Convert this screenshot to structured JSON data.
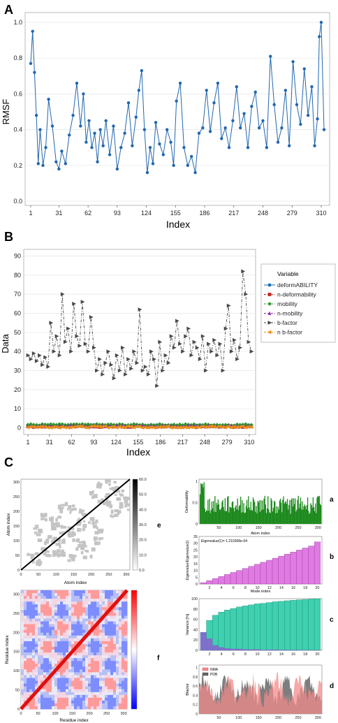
{
  "panel_labels": {
    "A": "A",
    "B": "B",
    "C": "C"
  },
  "sub_labels": {
    "a": "a",
    "b": "b",
    "c": "c",
    "d": "d",
    "e": "e",
    "f": "f"
  },
  "colors": {
    "rmsf_line": "#2166b0",
    "bfactor": "#4a4a4a",
    "deformability": "#1f6fb4",
    "n_deformability": "#c0281f",
    "mobility": "#2e9a2e",
    "n_mobility": "#8b2aa8",
    "n_bfactor": "#e8901a",
    "deform_bars": "#1e8a1e",
    "eigen_bars": "#e07be3",
    "variance_bars": "#3fd0b0",
    "variance_indiv": "#8a5fd0",
    "nma_fill": "#f28b8b",
    "pdb_fill": "#666666"
  },
  "chart_data": [
    {
      "id": "A",
      "type": "line",
      "xlabel": "Index",
      "ylabel": "RMSF",
      "xlim": [
        1,
        313
      ],
      "ylim": [
        0.0,
        1.0
      ],
      "xticks": [
        1,
        31,
        62,
        93,
        124,
        155,
        186,
        217,
        248,
        279,
        310
      ],
      "yticks": [
        0.0,
        0.2,
        0.4,
        0.6,
        0.8,
        1.0
      ],
      "ytick_labels": [
        "0.0",
        "0.2",
        "0.4",
        "0.6",
        "0.8",
        "1.0"
      ],
      "x": [
        1,
        3,
        5,
        7,
        9,
        11,
        14,
        17,
        20,
        24,
        28,
        31,
        34,
        38,
        42,
        46,
        50,
        54,
        57,
        60,
        63,
        66,
        69,
        72,
        75,
        78,
        81,
        85,
        89,
        93,
        97,
        101,
        105,
        109,
        113,
        116,
        119,
        122,
        125,
        128,
        131,
        134,
        138,
        142,
        146,
        150,
        153,
        156,
        160,
        164,
        168,
        172,
        176,
        180,
        184,
        188,
        192,
        196,
        200,
        204,
        208,
        212,
        216,
        220,
        224,
        228,
        232,
        236,
        240,
        244,
        248,
        252,
        256,
        260,
        264,
        268,
        272,
        276,
        280,
        284,
        288,
        292,
        296,
        300,
        303,
        306,
        308,
        310,
        313
      ],
      "values": [
        0.77,
        0.95,
        0.72,
        0.48,
        0.21,
        0.4,
        0.2,
        0.3,
        0.57,
        0.42,
        0.22,
        0.18,
        0.28,
        0.21,
        0.37,
        0.48,
        0.66,
        0.42,
        0.6,
        0.33,
        0.45,
        0.3,
        0.38,
        0.22,
        0.4,
        0.31,
        0.45,
        0.26,
        0.42,
        0.18,
        0.3,
        0.38,
        0.55,
        0.31,
        0.47,
        0.62,
        0.73,
        0.4,
        0.16,
        0.3,
        0.21,
        0.44,
        0.32,
        0.26,
        0.4,
        0.33,
        0.2,
        0.56,
        0.66,
        0.3,
        0.2,
        0.25,
        0.16,
        0.38,
        0.41,
        0.62,
        0.39,
        0.55,
        0.66,
        0.35,
        0.41,
        0.3,
        0.45,
        0.64,
        0.41,
        0.49,
        0.3,
        0.53,
        0.61,
        0.41,
        0.45,
        0.3,
        0.81,
        0.54,
        0.33,
        0.41,
        0.62,
        0.31,
        0.78,
        0.54,
        0.43,
        0.74,
        0.48,
        0.64,
        0.31,
        0.46,
        0.92,
        1.0,
        0.4
      ]
    },
    {
      "id": "B",
      "type": "line",
      "xlabel": "Index",
      "ylabel": "Data",
      "xlim": [
        1,
        313
      ],
      "ylim": [
        -2,
        92
      ],
      "xticks": [
        1,
        31,
        62,
        93,
        124,
        155,
        186,
        217,
        248,
        279,
        310
      ],
      "yticks": [
        0,
        10,
        20,
        30,
        40,
        50,
        60,
        70,
        80,
        90
      ],
      "legend_title": "Variable",
      "legend_position": "right",
      "series": [
        {
          "name": "deformABILITY",
          "marker": "circle",
          "dash": "solid",
          "constant": 1.2
        },
        {
          "name": "n-deformability",
          "marker": "square",
          "dash": "dash",
          "constant": 0.8
        },
        {
          "name": "mobility",
          "marker": "diamond",
          "dash": "dash",
          "constant": 1.6
        },
        {
          "name": "n-mobility",
          "marker": "triangle-up",
          "dash": "dashdot",
          "constant": 0.9
        },
        {
          "name": "b-factor",
          "marker": "triangle-right",
          "dash": "dashdot",
          "x": [
            1,
            5,
            9,
            13,
            17,
            21,
            25,
            29,
            33,
            37,
            41,
            45,
            49,
            53,
            57,
            61,
            65,
            69,
            73,
            77,
            81,
            85,
            89,
            93,
            97,
            101,
            105,
            109,
            113,
            117,
            121,
            125,
            129,
            133,
            137,
            141,
            145,
            149,
            153,
            157,
            161,
            165,
            169,
            173,
            177,
            181,
            185,
            189,
            193,
            197,
            201,
            205,
            209,
            213,
            217,
            221,
            225,
            229,
            233,
            237,
            241,
            245,
            249,
            253,
            257,
            261,
            265,
            269,
            273,
            277,
            281,
            285,
            289,
            293,
            297,
            301,
            305,
            309,
            313
          ],
          "values": [
            38,
            36,
            39,
            35,
            38,
            33,
            37,
            32,
            55,
            40,
            48,
            38,
            70,
            45,
            52,
            40,
            65,
            48,
            43,
            66,
            44,
            40,
            58,
            42,
            30,
            36,
            28,
            34,
            40,
            33,
            26,
            38,
            30,
            42,
            28,
            36,
            31,
            40,
            34,
            62,
            30,
            32,
            28,
            40,
            36,
            22,
            45,
            30,
            38,
            34,
            48,
            42,
            56,
            44,
            40,
            48,
            52,
            38,
            45,
            42,
            36,
            48,
            30,
            44,
            40,
            46,
            38,
            44,
            30,
            52,
            64,
            40,
            46,
            36,
            42,
            82,
            70,
            45,
            40
          ]
        },
        {
          "name": "n b-factor",
          "marker": "triangle-left",
          "dash": "dash",
          "constant": 0.5
        }
      ]
    },
    {
      "id": "e",
      "type": "heatmap",
      "xlabel": "Atom index",
      "ylabel": "Atom index",
      "xticks": [
        0,
        50,
        100,
        150,
        200,
        250,
        300
      ],
      "yticks": [
        0,
        50,
        100,
        150,
        200,
        250,
        300
      ],
      "colorbar_ticks": [
        "0.0",
        "10.0",
        "20.0",
        "30.0",
        "40.0",
        "50.0",
        "60.0"
      ]
    },
    {
      "id": "f",
      "type": "heatmap",
      "xlabel": "Residue index",
      "ylabel": "Residue index",
      "xticks": [
        0,
        50,
        100,
        150,
        200,
        250,
        300
      ],
      "yticks": [
        0,
        50,
        100,
        150,
        200,
        250,
        300
      ]
    },
    {
      "id": "a",
      "type": "bar",
      "xlabel": "Atom index",
      "ylabel": "Deformability",
      "xticks": [
        50,
        100,
        150,
        200,
        250,
        300
      ],
      "yticks": [
        0,
        0.5,
        1
      ],
      "ytick_labels": [
        "0",
        "0.5",
        "1"
      ]
    },
    {
      "id": "b",
      "type": "bar",
      "title": "Eigenvalue(1)= 1.210368e-04",
      "xlabel": "Mode index",
      "ylabel": "Eigenvalue/Eigenvalue(1)",
      "categories": [
        1,
        2,
        3,
        4,
        5,
        6,
        7,
        8,
        9,
        10,
        11,
        12,
        13,
        14,
        15,
        16,
        17,
        18,
        19,
        20
      ],
      "values": [
        1,
        2.5,
        4,
        5.5,
        7,
        8.5,
        10,
        11.5,
        13,
        14.5,
        16,
        17.5,
        19,
        20.5,
        22,
        23.5,
        25,
        26.5,
        28,
        31
      ],
      "xticks": [
        2,
        4,
        6,
        8,
        10,
        12,
        14,
        16,
        18,
        20
      ],
      "yticks": [
        0,
        5,
        10,
        15,
        20,
        25,
        30,
        35
      ],
      "ylim": [
        0,
        35
      ]
    },
    {
      "id": "c",
      "type": "bar",
      "xlabel": "",
      "ylabel": "Variance [%]",
      "categories": [
        1,
        2,
        3,
        4,
        5,
        6,
        7,
        8,
        9,
        10,
        11,
        12,
        13,
        14,
        15,
        16,
        17,
        18,
        19,
        20
      ],
      "values": [
        35,
        58,
        68,
        74,
        78,
        81,
        84,
        86,
        88,
        90,
        91,
        92.5,
        94,
        95,
        96,
        97,
        97.8,
        98.5,
        99.2,
        100
      ],
      "individual": [
        35,
        23,
        10,
        6,
        4,
        3,
        3,
        2,
        2,
        2,
        1,
        1.5,
        1.5,
        1,
        1,
        1,
        0.8,
        0.7,
        0.7,
        0.8
      ],
      "xticks": [
        2,
        4,
        6,
        8,
        10,
        12,
        14,
        16,
        18,
        20
      ],
      "yticks": [
        0,
        20,
        40,
        60,
        80,
        100
      ],
      "ylim": [
        0,
        100
      ]
    },
    {
      "id": "d",
      "type": "area",
      "xlabel": "",
      "ylabel": "Bfactor",
      "legend": [
        "NMA",
        "PDB"
      ],
      "xticks": [
        50,
        100,
        150,
        200,
        250,
        300
      ],
      "yticks": [
        0,
        0.2,
        0.4,
        0.6,
        0.8,
        1
      ],
      "ytick_labels": [
        "0",
        "0.2",
        "0.4",
        "0.6",
        "0.8",
        "1"
      ]
    }
  ]
}
